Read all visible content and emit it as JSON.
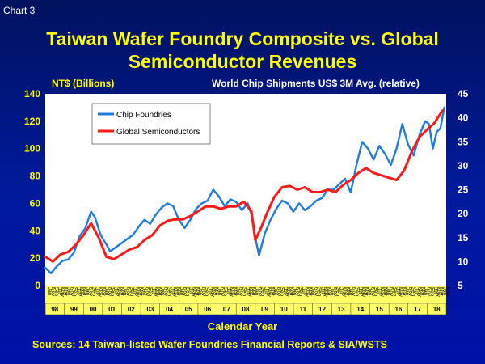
{
  "chart_label": "Chart 3",
  "title_line1": "Taiwan Wafer Foundry Composite vs. Global",
  "title_line2": "Semiconductor Revenues",
  "left_unit": "NT$ (Billions)",
  "right_unit": "World Chip Shipments US$ 3M Avg. (relative)",
  "xlabel": "Calendar Year",
  "source": "Sources: 14 Taiwan-listed Wafer Foundries Financial Reports & SIA/WSTS",
  "colors": {
    "foundry": "#1e7be0",
    "global": "#ff1a1a",
    "left_axis": "#ffff00",
    "right_axis": "#ffffff",
    "plot_bg": "#ffffff"
  },
  "chart_data": {
    "type": "line",
    "left_axis": {
      "min": 0,
      "max": 140,
      "ticks": [
        "0",
        "20",
        "40",
        "60",
        "80",
        "100",
        "120",
        "140"
      ]
    },
    "right_axis": {
      "min": 5,
      "max": 45,
      "ticks": [
        "5",
        "10",
        "15",
        "20",
        "25",
        "30",
        "35",
        "40",
        "45"
      ]
    },
    "x_range": [
      1998.0,
      2019.0
    ],
    "year_labels": [
      "98",
      "99",
      "00",
      "01",
      "02",
      "03",
      "04",
      "05",
      "06",
      "07",
      "08",
      "09",
      "10",
      "11",
      "12",
      "13",
      "14",
      "15",
      "16",
      "17",
      "18"
    ],
    "month_ticks": [
      "Jan",
      "Nov",
      "Sep",
      "Jul",
      "May",
      "Mar",
      "Jan",
      "Nov",
      "Sep",
      "Jul",
      "May",
      "Mar",
      "Jan",
      "Nov",
      "Sep",
      "Jul",
      "May",
      "Mar",
      "Jan",
      "Nov",
      "Sep",
      "Jul",
      "May",
      "Mar",
      "Jan",
      "Nov",
      "Sep",
      "Jul",
      "May",
      "Mar",
      "Jan",
      "Nov",
      "Sep",
      "Jul",
      "May",
      "Mar",
      "Jan",
      "Nov",
      "Sep",
      "Jul",
      "May",
      "Mar",
      "Jan",
      "Nov",
      "Sep",
      "Jul",
      "May",
      "Mar",
      "Jan",
      "Nov",
      "Sep",
      "Jul",
      "May",
      "Mar",
      "Jan",
      "Nov",
      "Sep",
      "Jul",
      "May",
      "Mar",
      "Jan",
      "Nov",
      "Sep",
      "Jul",
      "May",
      "Mar",
      "Jan",
      "Nov",
      "Sep",
      "Jul",
      "May",
      "Mar",
      "Jan",
      "Nov",
      "Sep",
      "Jul",
      "May",
      "Mar",
      "Jan",
      "Nov",
      "Sep",
      "Jul",
      "May",
      "Mar",
      "Jan",
      "Nov",
      "Sep",
      "Jul",
      "May",
      "Mar",
      "Jan",
      "Nov",
      "Sep",
      "Jul",
      "May",
      "Mar",
      "Jan",
      "Nov",
      "Sep",
      "Jul",
      "May",
      "Mar",
      "Jan",
      "Nov",
      "Sep",
      "Jul",
      "May",
      "Mar",
      "Jan",
      "Nov",
      "Sep",
      "Jul",
      "May",
      "Mar",
      "Jan",
      "Nov",
      "Sep",
      "Jul",
      "May",
      "Mar",
      "Jan",
      "Nov",
      "Sep",
      "Jul",
      "May",
      "Mar",
      "Jan",
      "Nov"
    ],
    "series": [
      {
        "name": "Chip Foundries",
        "axis": "left",
        "x": [
          1998.0,
          1998.3,
          1998.6,
          1998.9,
          1999.2,
          1999.5,
          1999.8,
          2000.1,
          2000.4,
          2000.6,
          2000.9,
          2001.2,
          2001.4,
          2001.7,
          2002.0,
          2002.3,
          2002.6,
          2002.9,
          2003.2,
          2003.5,
          2003.8,
          2004.1,
          2004.4,
          2004.7,
          2005.0,
          2005.3,
          2005.6,
          2005.9,
          2006.2,
          2006.5,
          2006.8,
          2007.1,
          2007.4,
          2007.7,
          2008.0,
          2008.3,
          2008.6,
          2008.8,
          2009.0,
          2009.2,
          2009.5,
          2009.8,
          2010.1,
          2010.4,
          2010.7,
          2011.0,
          2011.3,
          2011.6,
          2011.9,
          2012.2,
          2012.5,
          2012.8,
          2013.1,
          2013.4,
          2013.7,
          2014.0,
          2014.3,
          2014.6,
          2014.9,
          2015.2,
          2015.5,
          2015.8,
          2016.1,
          2016.4,
          2016.7,
          2017.0,
          2017.3,
          2017.6,
          2017.9,
          2018.1,
          2018.3,
          2018.5,
          2018.7,
          2018.9
        ],
        "y": [
          13,
          9,
          14,
          18,
          19,
          24,
          36,
          42,
          54,
          50,
          37,
          30,
          25,
          28,
          31,
          34,
          37,
          43,
          48,
          45,
          52,
          57,
          60,
          58,
          48,
          42,
          48,
          56,
          60,
          62,
          70,
          65,
          58,
          63,
          61,
          55,
          60,
          52,
          35,
          22,
          38,
          48,
          56,
          62,
          60,
          54,
          60,
          55,
          58,
          62,
          64,
          70,
          70,
          74,
          78,
          68,
          88,
          105,
          100,
          92,
          102,
          96,
          88,
          100,
          118,
          103,
          95,
          110,
          120,
          118,
          100,
          112,
          115,
          130
        ]
      },
      {
        "name": "Global Semiconductors",
        "axis": "right",
        "x": [
          1998.0,
          1998.4,
          1998.8,
          1999.2,
          1999.6,
          2000.0,
          2000.4,
          2000.8,
          2001.2,
          2001.6,
          2002.0,
          2002.4,
          2002.8,
          2003.2,
          2003.6,
          2004.0,
          2004.4,
          2004.8,
          2005.2,
          2005.6,
          2006.0,
          2006.4,
          2006.8,
          2007.2,
          2007.6,
          2008.0,
          2008.4,
          2008.8,
          2009.0,
          2009.3,
          2009.6,
          2010.0,
          2010.4,
          2010.8,
          2011.2,
          2011.6,
          2012.0,
          2012.4,
          2012.8,
          2013.2,
          2013.6,
          2014.0,
          2014.4,
          2014.8,
          2015.2,
          2015.6,
          2016.0,
          2016.4,
          2016.8,
          2017.2,
          2017.6,
          2018.0,
          2018.4,
          2018.8
        ],
        "y": [
          11.0,
          10.0,
          11.5,
          12.0,
          13.5,
          15.5,
          18.0,
          15.0,
          11.0,
          10.5,
          11.5,
          12.5,
          13.0,
          14.5,
          15.5,
          17.5,
          18.5,
          18.8,
          18.8,
          19.5,
          20.5,
          21.5,
          21.5,
          21.0,
          21.5,
          21.5,
          22.5,
          20.5,
          14.5,
          17.0,
          20.0,
          23.5,
          25.5,
          25.8,
          25.0,
          25.5,
          24.5,
          24.5,
          25.0,
          24.5,
          26.0,
          27.0,
          28.5,
          29.5,
          28.5,
          28.0,
          27.5,
          27.0,
          29.0,
          33.0,
          36.0,
          37.5,
          39.0,
          41.5
        ]
      }
    ],
    "legend": {
      "placement": "top-left",
      "entries": [
        "Chip Foundries",
        "Global Semiconductors"
      ]
    },
    "grid": false
  }
}
